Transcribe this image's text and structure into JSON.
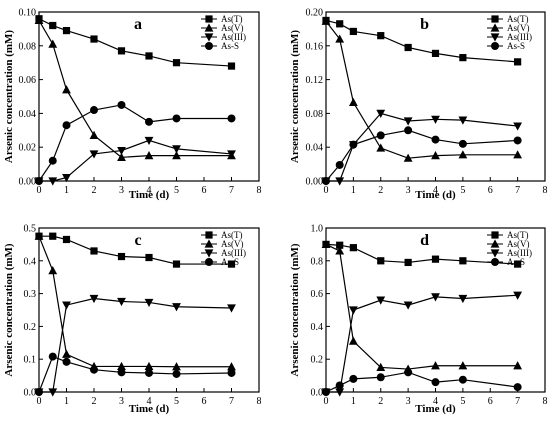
{
  "figure": {
    "ylabel": "Arsenic concentration (mM)",
    "xlabel": "Time (d)"
  },
  "chart_data": [
    {
      "type": "line",
      "panel": "a",
      "xlabel": "Time (d)",
      "ylabel": "Arsenic concentration (mM)",
      "xlim": [
        0,
        8
      ],
      "ylim": [
        0,
        0.1
      ],
      "xticks": [
        0,
        1,
        2,
        3,
        4,
        5,
        6,
        7,
        8
      ],
      "yticks": [
        "0.00",
        "0.02",
        "0.04",
        "0.06",
        "0.08",
        "0.10"
      ],
      "legend": "top-right",
      "x": [
        0,
        0.5,
        1,
        2,
        3,
        4,
        5,
        7
      ],
      "series": [
        {
          "name": "As(T)",
          "marker": "square",
          "values": [
            0.096,
            0.092,
            0.089,
            0.084,
            0.077,
            0.074,
            0.07,
            0.068
          ]
        },
        {
          "name": "As(V)",
          "marker": "triangle-up",
          "values": [
            0.095,
            0.081,
            0.054,
            0.027,
            0.014,
            0.015,
            0.015,
            0.015
          ]
        },
        {
          "name": "As(III)",
          "marker": "triangle-down",
          "values": [
            0.0,
            0.0,
            0.002,
            0.016,
            0.018,
            0.024,
            0.019,
            0.016
          ]
        },
        {
          "name": "As-S",
          "marker": "circle",
          "values": [
            0.0,
            0.012,
            0.033,
            0.042,
            0.045,
            0.035,
            0.037,
            0.037
          ]
        }
      ]
    },
    {
      "type": "line",
      "panel": "b",
      "xlabel": "Time (d)",
      "ylabel": "",
      "xlim": [
        0,
        8
      ],
      "ylim": [
        0,
        0.2
      ],
      "xticks": [
        0,
        1,
        2,
        3,
        4,
        5,
        6,
        7,
        8
      ],
      "yticks": [
        "0.00",
        "0.04",
        "0.08",
        "0.12",
        "0.16",
        "0.20"
      ],
      "legend": "top-right",
      "x": [
        0,
        0.5,
        1,
        2,
        3,
        4,
        5,
        7
      ],
      "series": [
        {
          "name": "As(T)",
          "marker": "square",
          "values": [
            0.19,
            0.186,
            0.177,
            0.172,
            0.158,
            0.151,
            0.146,
            0.141
          ]
        },
        {
          "name": "As(V)",
          "marker": "triangle-up",
          "values": [
            0.189,
            0.168,
            0.093,
            0.039,
            0.027,
            0.03,
            0.031,
            0.031
          ]
        },
        {
          "name": "As(III)",
          "marker": "triangle-down",
          "values": [
            0.0,
            0.0,
            0.043,
            0.08,
            0.071,
            0.073,
            0.072,
            0.065
          ]
        },
        {
          "name": "As-S",
          "marker": "circle",
          "values": [
            0.0,
            0.019,
            0.043,
            0.054,
            0.06,
            0.049,
            0.044,
            0.048
          ]
        }
      ]
    },
    {
      "type": "line",
      "panel": "c",
      "xlabel": "Time (d)",
      "ylabel": "Arsenic concentration (mM)",
      "xlim": [
        0,
        8
      ],
      "ylim": [
        0,
        0.5
      ],
      "xticks": [
        0,
        1,
        2,
        3,
        4,
        5,
        6,
        7,
        8
      ],
      "yticks": [
        "0.0",
        "0.1",
        "0.2",
        "0.3",
        "0.4",
        "0.5"
      ],
      "legend": "top-right",
      "x": [
        0,
        0.5,
        1,
        2,
        3,
        4,
        5,
        7
      ],
      "series": [
        {
          "name": "As(T)",
          "marker": "square",
          "values": [
            0.475,
            0.475,
            0.465,
            0.43,
            0.413,
            0.41,
            0.39,
            0.39
          ]
        },
        {
          "name": "As(V)",
          "marker": "triangle-up",
          "values": [
            0.475,
            0.37,
            0.115,
            0.078,
            0.078,
            0.078,
            0.077,
            0.077
          ]
        },
        {
          "name": "As(III)",
          "marker": "triangle-down",
          "values": [
            0.0,
            0.0,
            0.265,
            0.285,
            0.276,
            0.273,
            0.26,
            0.256
          ]
        },
        {
          "name": "As-S",
          "marker": "circle",
          "values": [
            0.0,
            0.108,
            0.092,
            0.068,
            0.06,
            0.058,
            0.055,
            0.058
          ]
        }
      ]
    },
    {
      "type": "line",
      "panel": "d",
      "xlabel": "Time (d)",
      "ylabel": "",
      "xlim": [
        0,
        8
      ],
      "ylim": [
        0,
        1.0
      ],
      "xticks": [
        0,
        1,
        2,
        3,
        4,
        5,
        6,
        7,
        8
      ],
      "yticks": [
        "0.0",
        "0.2",
        "0.4",
        "0.6",
        "0.8",
        "1.0"
      ],
      "legend": "top-right",
      "x": [
        0,
        0.5,
        1,
        2,
        3,
        4,
        5,
        7
      ],
      "series": [
        {
          "name": "As(T)",
          "marker": "square",
          "values": [
            0.9,
            0.895,
            0.88,
            0.8,
            0.79,
            0.81,
            0.8,
            0.78
          ]
        },
        {
          "name": "As(V)",
          "marker": "triangle-up",
          "values": [
            0.9,
            0.86,
            0.31,
            0.15,
            0.14,
            0.16,
            0.16,
            0.16
          ]
        },
        {
          "name": "As(III)",
          "marker": "triangle-down",
          "values": [
            0.0,
            0.0,
            0.5,
            0.56,
            0.53,
            0.58,
            0.57,
            0.59
          ]
        },
        {
          "name": "As-S",
          "marker": "circle",
          "values": [
            0.0,
            0.04,
            0.08,
            0.09,
            0.12,
            0.06,
            0.075,
            0.03
          ]
        }
      ]
    }
  ]
}
